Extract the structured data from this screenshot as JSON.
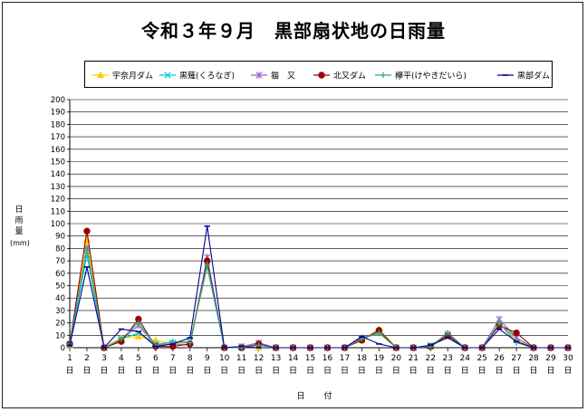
{
  "chart_data": {
    "type": "line",
    "title": "令和３年９月　黒部扇状地の日雨量",
    "xlabel": "日　付",
    "ylabel": "日雨量",
    "yunit": "(mm)",
    "ylim": [
      0,
      200
    ],
    "ytick_step": 10,
    "grid": true,
    "legend_position": "top",
    "x": [
      1,
      2,
      3,
      4,
      5,
      6,
      7,
      8,
      9,
      10,
      11,
      12,
      13,
      14,
      15,
      16,
      17,
      18,
      19,
      20,
      21,
      22,
      23,
      24,
      25,
      26,
      27,
      28,
      29,
      30
    ],
    "xtick_suffix": "日",
    "series": [
      {
        "name": "宇奈月ダム",
        "color": "#ffcc00",
        "marker": "triangle",
        "values": [
          2,
          87,
          0,
          8,
          9,
          6,
          3,
          4,
          72,
          0,
          1,
          0,
          0,
          0,
          0,
          0,
          0,
          6,
          15,
          0,
          0,
          1,
          9,
          0,
          0,
          20,
          6,
          0,
          0,
          0
        ]
      },
      {
        "name": "黒薙(くろなぎ)",
        "color": "#00cccc",
        "marker": "x",
        "values": [
          2,
          75,
          0,
          7,
          12,
          3,
          4,
          5,
          65,
          0,
          0,
          2,
          0,
          0,
          0,
          0,
          0,
          7,
          13,
          0,
          0,
          2,
          10,
          0,
          0,
          19,
          8,
          0,
          0,
          0
        ]
      },
      {
        "name": "猫　又",
        "color": "#9966cc",
        "marker": "star",
        "values": [
          3,
          80,
          0,
          6,
          18,
          2,
          3,
          2,
          73,
          0,
          1,
          4,
          0,
          0,
          0,
          0,
          0,
          8,
          12,
          0,
          0,
          1,
          11,
          0,
          0,
          23,
          8,
          0,
          0,
          0
        ]
      },
      {
        "name": "北又ダム",
        "color": "#990000",
        "marker": "circle",
        "values": [
          3,
          94,
          0,
          5,
          23,
          1,
          1,
          3,
          70,
          0,
          0,
          3,
          0,
          0,
          0,
          0,
          0,
          6,
          14,
          0,
          0,
          1,
          10,
          0,
          0,
          18,
          12,
          0,
          0,
          0
        ]
      },
      {
        "name": "欅平(けやきだいら)",
        "color": "#33aa77",
        "marker": "plus",
        "values": [
          3,
          80,
          0,
          7,
          20,
          2,
          5,
          4,
          67,
          0,
          0,
          2,
          0,
          0,
          0,
          0,
          0,
          7,
          12,
          0,
          0,
          1,
          12,
          0,
          0,
          20,
          4,
          0,
          0,
          0
        ]
      },
      {
        "name": "黒部ダム",
        "color": "#000099",
        "marker": "dash",
        "values": [
          2,
          65,
          0,
          15,
          13,
          1,
          3,
          8,
          98,
          0,
          1,
          0,
          0,
          0,
          0,
          0,
          0,
          9,
          3,
          0,
          0,
          2,
          8,
          0,
          0,
          15,
          5,
          0,
          0,
          0
        ]
      }
    ]
  }
}
